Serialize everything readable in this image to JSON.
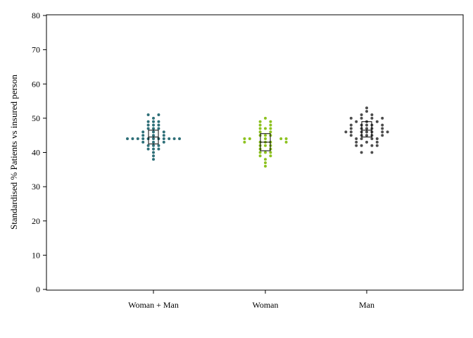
{
  "chart_data": {
    "type": "scatter",
    "subtype": "dot-strip with box",
    "title": "",
    "xlabel": "",
    "ylabel": "Standardised % Patients vs insured person",
    "ylim": [
      0,
      80
    ],
    "yticks": [
      0,
      10,
      20,
      30,
      40,
      50,
      60,
      70,
      80
    ],
    "grid": false,
    "categories": [
      "Woman + Man",
      "Woman",
      "Man"
    ],
    "series": [
      {
        "category": "Woman + Man",
        "color": "#2e6f78",
        "box": {
          "q1": 42.5,
          "median": 44.5,
          "q3": 46.5
        },
        "points": [
          {
            "offset": 0,
            "y": 38
          },
          {
            "offset": 0,
            "y": 39
          },
          {
            "offset": 0,
            "y": 40
          },
          {
            "offset": -1,
            "y": 41
          },
          {
            "offset": 0,
            "y": 41
          },
          {
            "offset": 1,
            "y": 41
          },
          {
            "offset": -1,
            "y": 42
          },
          {
            "offset": 0,
            "y": 42
          },
          {
            "offset": 1,
            "y": 42
          },
          {
            "offset": -2,
            "y": 43
          },
          {
            "offset": 0,
            "y": 43
          },
          {
            "offset": 2,
            "y": 43
          },
          {
            "offset": -5,
            "y": 44
          },
          {
            "offset": -4,
            "y": 44
          },
          {
            "offset": -3,
            "y": 44
          },
          {
            "offset": -2,
            "y": 44
          },
          {
            "offset": -1,
            "y": 44
          },
          {
            "offset": 0,
            "y": 44
          },
          {
            "offset": 1,
            "y": 44
          },
          {
            "offset": 2,
            "y": 44
          },
          {
            "offset": 3,
            "y": 44
          },
          {
            "offset": 4,
            "y": 44
          },
          {
            "offset": 5,
            "y": 44
          },
          {
            "offset": -2,
            "y": 45
          },
          {
            "offset": 0,
            "y": 45
          },
          {
            "offset": 2,
            "y": 45
          },
          {
            "offset": -2,
            "y": 46
          },
          {
            "offset": 0,
            "y": 46
          },
          {
            "offset": 2,
            "y": 46
          },
          {
            "offset": -1,
            "y": 47
          },
          {
            "offset": 0,
            "y": 47
          },
          {
            "offset": 1,
            "y": 47
          },
          {
            "offset": -1,
            "y": 48
          },
          {
            "offset": 0,
            "y": 48
          },
          {
            "offset": 1,
            "y": 48
          },
          {
            "offset": -1,
            "y": 49
          },
          {
            "offset": 0,
            "y": 49
          },
          {
            "offset": 1,
            "y": 49
          },
          {
            "offset": 0,
            "y": 50
          },
          {
            "offset": -1,
            "y": 51
          },
          {
            "offset": 1,
            "y": 51
          }
        ]
      },
      {
        "category": "Woman",
        "color": "#8dc21f",
        "box": {
          "q1": 40.5,
          "median": 43,
          "q3": 45.5
        },
        "points": [
          {
            "offset": 0,
            "y": 36
          },
          {
            "offset": 0,
            "y": 37
          },
          {
            "offset": 0,
            "y": 38
          },
          {
            "offset": -1,
            "y": 39
          },
          {
            "offset": 1,
            "y": 39
          },
          {
            "offset": -1,
            "y": 40
          },
          {
            "offset": 0,
            "y": 40
          },
          {
            "offset": 1,
            "y": 40
          },
          {
            "offset": -1,
            "y": 41
          },
          {
            "offset": 1,
            "y": 41
          },
          {
            "offset": -1,
            "y": 42
          },
          {
            "offset": 0,
            "y": 42
          },
          {
            "offset": 1,
            "y": 42
          },
          {
            "offset": -4,
            "y": 43
          },
          {
            "offset": -1,
            "y": 43
          },
          {
            "offset": 0,
            "y": 43
          },
          {
            "offset": 1,
            "y": 43
          },
          {
            "offset": 4,
            "y": 43
          },
          {
            "offset": -4,
            "y": 44
          },
          {
            "offset": -3,
            "y": 44
          },
          {
            "offset": 0,
            "y": 44
          },
          {
            "offset": 3,
            "y": 44
          },
          {
            "offset": 4,
            "y": 44
          },
          {
            "offset": -1,
            "y": 45
          },
          {
            "offset": 0,
            "y": 45
          },
          {
            "offset": 1,
            "y": 45
          },
          {
            "offset": -1,
            "y": 46
          },
          {
            "offset": 1,
            "y": 46
          },
          {
            "offset": -1,
            "y": 47
          },
          {
            "offset": 0,
            "y": 47
          },
          {
            "offset": 1,
            "y": 47
          },
          {
            "offset": -1,
            "y": 48
          },
          {
            "offset": 1,
            "y": 48
          },
          {
            "offset": -1,
            "y": 49
          },
          {
            "offset": 1,
            "y": 49
          },
          {
            "offset": 0,
            "y": 50
          }
        ]
      },
      {
        "category": "Man",
        "color": "#4d4d4d",
        "box": {
          "q1": 44.5,
          "median": 46.5,
          "q3": 49
        },
        "points": [
          {
            "offset": -1,
            "y": 40
          },
          {
            "offset": 1,
            "y": 40
          },
          {
            "offset": -2,
            "y": 42
          },
          {
            "offset": -1,
            "y": 42
          },
          {
            "offset": 1,
            "y": 42
          },
          {
            "offset": 2,
            "y": 42
          },
          {
            "offset": -2,
            "y": 43
          },
          {
            "offset": 0,
            "y": 43
          },
          {
            "offset": 2,
            "y": 43
          },
          {
            "offset": -2,
            "y": 44
          },
          {
            "offset": -1,
            "y": 44
          },
          {
            "offset": 1,
            "y": 44
          },
          {
            "offset": 2,
            "y": 44
          },
          {
            "offset": -3,
            "y": 45
          },
          {
            "offset": -1,
            "y": 45
          },
          {
            "offset": 0,
            "y": 45
          },
          {
            "offset": 1,
            "y": 45
          },
          {
            "offset": 3,
            "y": 45
          },
          {
            "offset": -4,
            "y": 46
          },
          {
            "offset": -3,
            "y": 46
          },
          {
            "offset": -1,
            "y": 46
          },
          {
            "offset": 0,
            "y": 46
          },
          {
            "offset": 1,
            "y": 46
          },
          {
            "offset": 3,
            "y": 46
          },
          {
            "offset": 4,
            "y": 46
          },
          {
            "offset": -3,
            "y": 47
          },
          {
            "offset": -1,
            "y": 47
          },
          {
            "offset": 0,
            "y": 47
          },
          {
            "offset": 1,
            "y": 47
          },
          {
            "offset": 3,
            "y": 47
          },
          {
            "offset": -3,
            "y": 48
          },
          {
            "offset": -1,
            "y": 48
          },
          {
            "offset": 0,
            "y": 48
          },
          {
            "offset": 1,
            "y": 48
          },
          {
            "offset": 3,
            "y": 48
          },
          {
            "offset": -2,
            "y": 49
          },
          {
            "offset": 0,
            "y": 49
          },
          {
            "offset": 2,
            "y": 49
          },
          {
            "offset": -3,
            "y": 50
          },
          {
            "offset": -1,
            "y": 50
          },
          {
            "offset": 1,
            "y": 50
          },
          {
            "offset": 3,
            "y": 50
          },
          {
            "offset": -1,
            "y": 51
          },
          {
            "offset": 1,
            "y": 51
          },
          {
            "offset": 0,
            "y": 52
          },
          {
            "offset": 0,
            "y": 53
          }
        ]
      }
    ]
  }
}
